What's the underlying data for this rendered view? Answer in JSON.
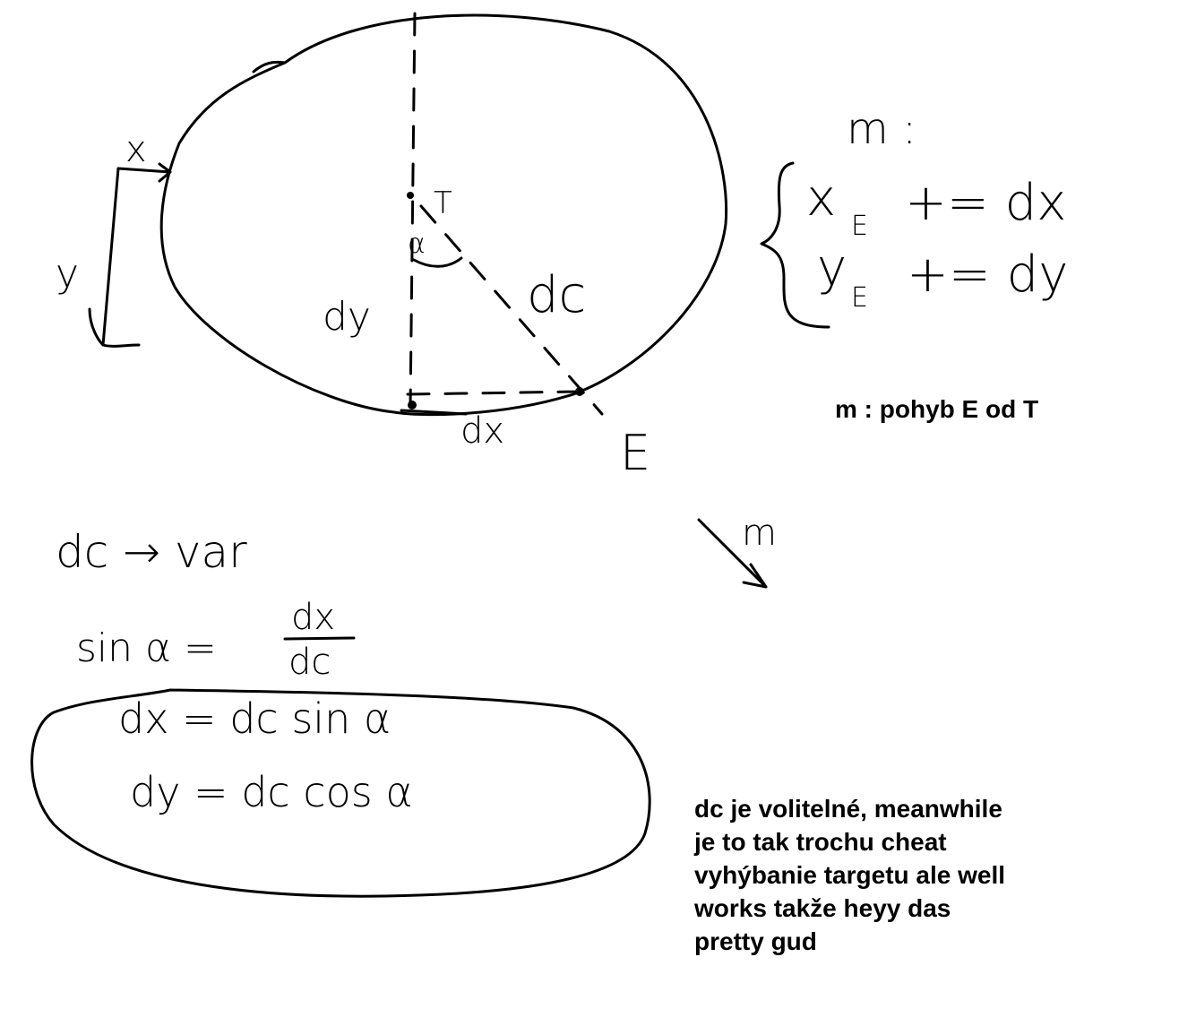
{
  "canvas": {
    "background": "#ffffff",
    "ink": "#000000"
  },
  "sketch": {
    "label_T": "T",
    "label_alpha": "α",
    "label_dc": "dc",
    "label_dy_side": "dy",
    "label_dx_bottom": "dx",
    "label_E": "E",
    "label_x_offset": "x",
    "label_y_offset": "y",
    "label_m_arrow": "m"
  },
  "system": {
    "heading": "m :",
    "row1_var": "x",
    "row1_sub": "E",
    "row1_op": "+= dx",
    "row2_var": "y",
    "row2_sub": "E",
    "row2_op": "+= dy"
  },
  "caption": "m : pohyb E od T",
  "notes": {
    "dc_var": "dc → var",
    "sin_lhs": "sin α =",
    "frac_num": "dx",
    "frac_den": "dc",
    "eq1": "dx = dc sin α",
    "eq2": "dy = dc cos α"
  },
  "comment_lines": [
    "dc je volitelné, meanwhile",
    "je to tak trochu cheat",
    "vyhýbanie targetu ale well",
    "works takže heyy das",
    "pretty gud"
  ]
}
